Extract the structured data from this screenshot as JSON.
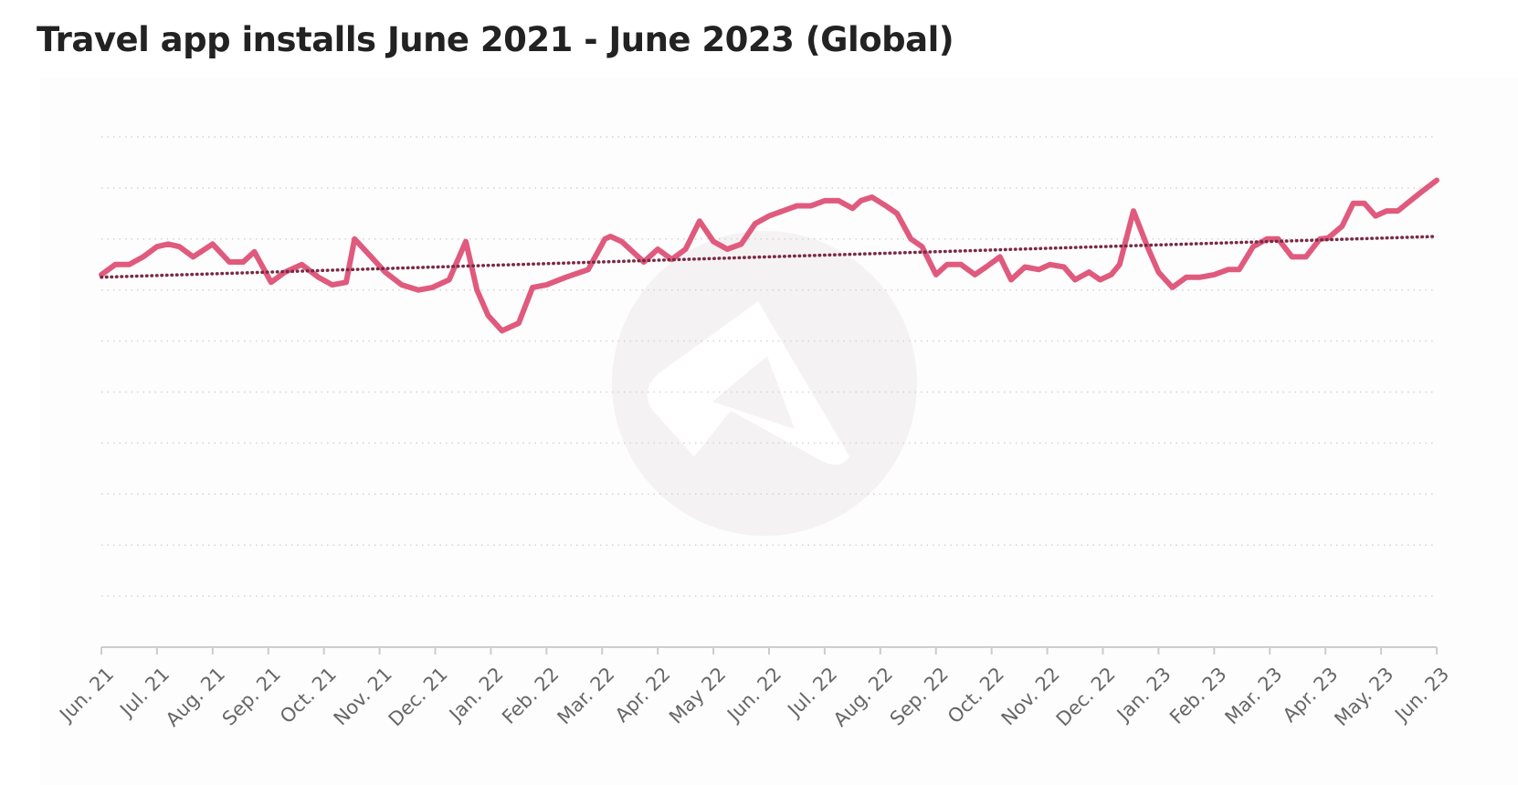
{
  "chart_data": {
    "type": "line",
    "title": "Travel app installs June 2021 - June 2023 (Global)",
    "xlabel": "",
    "ylabel": "",
    "categories": [
      "Jun. 21",
      "Jul. 21",
      "Aug. 21",
      "Sep. 21",
      "Oct. 21",
      "Nov. 21",
      "Dec. 21",
      "Jan. 22",
      "Feb. 22",
      "Mar. 22",
      "Apr. 22",
      "May 22",
      "Jun. 22",
      "Jul. 22",
      "Aug. 22",
      "Sep. 22",
      "Oct. 22",
      "Nov. 22",
      "Dec. 22",
      "Jan. 23",
      "Feb. 23",
      "Mar. 23",
      "Apr. 23",
      "May. 23",
      "Jun. 23"
    ],
    "xlim": [
      0,
      24
    ],
    "ylim": [
      0,
      10
    ],
    "grid": true,
    "y_tick_labels_shown": false,
    "series": [
      {
        "color": "#e05a7e",
        "x": [
          0,
          0.25,
          0.5,
          0.75,
          1.0,
          1.2,
          1.4,
          1.65,
          2.0,
          2.3,
          2.55,
          2.75,
          3.05,
          3.3,
          3.6,
          3.9,
          4.15,
          4.4,
          4.55,
          4.85,
          5.1,
          5.4,
          5.7,
          5.95,
          6.25,
          6.55,
          6.75,
          6.95,
          7.2,
          7.5,
          7.75,
          8.0,
          8.35,
          8.75,
          9.05,
          9.15,
          9.35,
          9.55,
          9.75,
          10.0,
          10.25,
          10.5,
          10.75,
          11.0,
          11.25,
          11.5,
          11.75,
          12.0,
          12.25,
          12.5,
          12.75,
          13.0,
          13.25,
          13.5,
          13.65,
          13.85,
          14.1,
          14.3,
          14.55,
          14.75,
          15.0,
          15.2,
          15.45,
          15.7,
          15.9,
          16.15,
          16.35,
          16.6,
          16.85,
          17.05,
          17.3,
          17.5,
          17.75,
          17.95,
          18.15,
          18.3,
          18.55,
          18.8,
          19.0,
          19.25,
          19.5,
          19.75,
          20.0,
          20.25,
          20.45,
          20.7,
          20.95,
          21.15,
          21.4,
          21.65,
          21.9,
          22.05,
          22.3,
          22.5,
          22.7,
          22.9,
          23.1,
          23.3,
          23.7,
          24.0
        ],
        "y": [
          7.3,
          7.5,
          7.5,
          7.65,
          7.85,
          7.9,
          7.85,
          7.65,
          7.9,
          7.55,
          7.55,
          7.75,
          7.15,
          7.35,
          7.5,
          7.25,
          7.1,
          7.15,
          8.0,
          7.65,
          7.35,
          7.1,
          7.0,
          7.05,
          7.2,
          7.95,
          7.0,
          6.5,
          6.2,
          6.35,
          7.05,
          7.1,
          7.25,
          7.4,
          8.0,
          8.05,
          7.95,
          7.75,
          7.55,
          7.8,
          7.6,
          7.8,
          8.35,
          7.95,
          7.8,
          7.9,
          8.3,
          8.45,
          8.55,
          8.65,
          8.65,
          8.75,
          8.75,
          8.6,
          8.75,
          8.82,
          8.65,
          8.5,
          8.0,
          7.85,
          7.3,
          7.5,
          7.5,
          7.3,
          7.45,
          7.65,
          7.2,
          7.45,
          7.4,
          7.5,
          7.45,
          7.2,
          7.35,
          7.2,
          7.3,
          7.5,
          8.55,
          7.85,
          7.35,
          7.05,
          7.25,
          7.25,
          7.3,
          7.4,
          7.4,
          7.85,
          8.0,
          8.0,
          7.65,
          7.65,
          8.0,
          8.02,
          8.25,
          8.7,
          8.7,
          8.45,
          8.55,
          8.55,
          8.9,
          9.15
        ]
      },
      {
        "color": "#7a2a45",
        "style": "dotted",
        "x": [
          0,
          24
        ],
        "y": [
          7.25,
          8.05
        ]
      }
    ]
  },
  "watermark": {
    "name": "logo-watermark"
  }
}
